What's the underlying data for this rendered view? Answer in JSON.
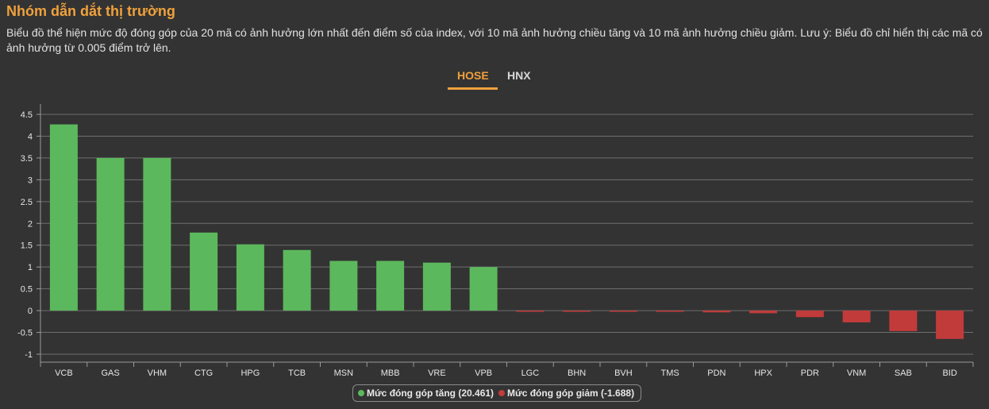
{
  "header": {
    "title": "Nhóm dẫn dắt thị trường",
    "description": "Biểu đồ thể hiện mức độ đóng góp của 20 mã có ảnh hưởng lớn nhất đến điểm số của index, với 10 mã ảnh hưởng chiều tăng và 10 mã ảnh hưởng chiều giảm. Lưu ý: Biểu đồ chỉ hiển thị các mã có ảnh hưởng từ 0.005 điểm trở lên."
  },
  "tabs": [
    {
      "label": "HOSE",
      "active": true
    },
    {
      "label": "HNX",
      "active": false
    }
  ],
  "colors": {
    "accent": "#f0a13c",
    "increase": "#5cb85c",
    "decrease": "#c23b3b"
  },
  "legend": {
    "increase_label": "Mức đóng góp tăng (20.461)",
    "decrease_label": "Mức đóng góp giảm (-1.688)"
  },
  "chart_data": {
    "type": "bar",
    "title": "",
    "xlabel": "",
    "ylabel": "",
    "ylim": [
      -1,
      4.5
    ],
    "yticks": [
      "4.5",
      "4",
      "3.5",
      "3",
      "2.5",
      "2",
      "1.5",
      "1",
      "0.5",
      "0",
      "-0.5",
      "-1"
    ],
    "grid": true,
    "legend_position": "bottom",
    "categories": [
      "VCB",
      "GAS",
      "VHM",
      "CTG",
      "HPG",
      "TCB",
      "MSN",
      "MBB",
      "VRE",
      "VPB",
      "LGC",
      "BHN",
      "BVH",
      "TMS",
      "PDN",
      "HPX",
      "PDR",
      "VNM",
      "SAB",
      "BID"
    ],
    "values": [
      4.27,
      3.5,
      3.5,
      1.79,
      1.52,
      1.39,
      1.14,
      1.14,
      1.1,
      1.0,
      -0.02,
      -0.02,
      -0.02,
      -0.02,
      -0.04,
      -0.06,
      -0.15,
      -0.27,
      -0.47,
      -0.65
    ],
    "series": [
      {
        "name": "Mức đóng góp tăng (20.461)",
        "color": "#5cb85c"
      },
      {
        "name": "Mức đóng góp giảm (-1.688)",
        "color": "#c23b3b"
      }
    ]
  }
}
